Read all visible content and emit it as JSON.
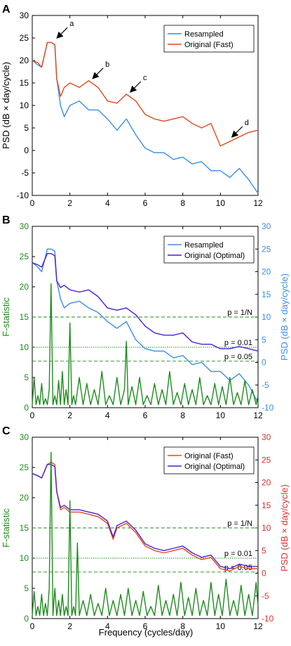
{
  "colors": {
    "resampled": "#3a8ee6",
    "original_fast": "#e04a1a",
    "original_optimal": "#4b1fd6",
    "fstat": "#1e8c1e",
    "right_axis_b": "#3a8ee6",
    "right_axis_c": "#e03030",
    "threshold": "#1e8c1e"
  },
  "xlabel": "Frequency (cycles/day)",
  "chart_data": [
    {
      "panel": "A",
      "type": "line",
      "ylabel": "PSD (dB × day/cycle)",
      "xlim": [
        0,
        12
      ],
      "ylim": [
        -10,
        30
      ],
      "xticks": [
        "0",
        "2",
        "4",
        "6",
        "8",
        "10",
        "12"
      ],
      "yticks": [
        "-10",
        "-5",
        "0",
        "5",
        "10",
        "15",
        "20",
        "25",
        "30"
      ],
      "legend_location": "top-right",
      "legend": [
        "Resampled",
        "Original (Fast)"
      ],
      "series": [
        {
          "name": "Resampled",
          "color_key": "resampled",
          "x": [
            0,
            0.3,
            0.5,
            0.8,
            1.0,
            1.2,
            1.3,
            1.5,
            1.7,
            2.0,
            2.5,
            3.0,
            3.5,
            4.0,
            4.5,
            5.0,
            5.5,
            6.0,
            6.5,
            7.0,
            7.5,
            8.0,
            8.5,
            9.0,
            9.5,
            10.0,
            10.5,
            11.0,
            11.5,
            12.0
          ],
          "y": [
            20,
            19,
            18.5,
            24,
            24,
            23.5,
            16,
            10,
            7.5,
            10,
            11,
            9,
            9,
            7,
            4.5,
            7,
            3.5,
            0.5,
            -0.5,
            -0.5,
            -2,
            -1.5,
            -3,
            -2.5,
            -4.5,
            -4.5,
            -6,
            -4,
            -6.5,
            -9.5
          ]
        },
        {
          "name": "Original (Fast)",
          "color_key": "original_fast",
          "x": [
            0,
            0.3,
            0.5,
            0.8,
            1.0,
            1.2,
            1.3,
            1.5,
            1.7,
            2.0,
            2.5,
            3.0,
            3.5,
            4.0,
            4.5,
            5.0,
            5.5,
            6.0,
            6.5,
            7.0,
            7.5,
            8.0,
            8.5,
            9.0,
            9.5,
            10.0,
            10.5,
            11.0,
            11.5,
            12.0
          ],
          "y": [
            20,
            19.5,
            18.5,
            24,
            24,
            23.5,
            16,
            12,
            14,
            15,
            14,
            15.5,
            14,
            11,
            10.5,
            12.5,
            11,
            8,
            7,
            6.5,
            7,
            7.5,
            6,
            5,
            6,
            1,
            2,
            3,
            4,
            4.5
          ]
        }
      ],
      "annotations": [
        {
          "label": "a",
          "x": 1.2,
          "y": 24.5
        },
        {
          "label": "b",
          "x": 3.1,
          "y": 15.5
        },
        {
          "label": "c",
          "x": 5.1,
          "y": 12.5
        },
        {
          "label": "d",
          "x": 10.5,
          "y": 2.5
        }
      ]
    },
    {
      "panel": "B",
      "type": "line",
      "ylabel_left": "F-statistic",
      "ylabel_right": "PSD (dB × day/cycle)",
      "xlim": [
        0,
        12
      ],
      "ylim_left": [
        0,
        30
      ],
      "ylim_right": [
        -10,
        30
      ],
      "xticks": [
        "0",
        "2",
        "4",
        "6",
        "8",
        "10",
        "12"
      ],
      "yticks_left": [
        "0",
        "5",
        "10",
        "15",
        "20",
        "25",
        "30"
      ],
      "yticks_right": [
        "-10",
        "-5",
        "0",
        "5",
        "10",
        "15",
        "20",
        "25",
        "30"
      ],
      "legend_location": "top-right",
      "legend": [
        "Resampled",
        "Original (Optimal)"
      ],
      "thresholds": [
        {
          "label": "p = 1/N",
          "value": 15,
          "style": "dashed"
        },
        {
          "label": "p = 0.01",
          "value": 10,
          "style": "dotted"
        },
        {
          "label": "p = 0.05",
          "value": 7.7,
          "style": "dashed"
        }
      ],
      "series": [
        {
          "name": "Resampled",
          "color_key": "resampled",
          "axis": "right",
          "x": [
            0,
            0.3,
            0.5,
            0.8,
            1.0,
            1.2,
            1.3,
            1.5,
            1.7,
            2.0,
            2.5,
            3.0,
            3.5,
            4.0,
            4.5,
            5.0,
            5.5,
            6.0,
            6.5,
            7.0,
            7.5,
            8.0,
            8.5,
            9.0,
            9.5,
            10.0,
            10.5,
            11.0,
            11.5,
            12.0
          ],
          "y": [
            22,
            21,
            20,
            25,
            25,
            24.5,
            18,
            14,
            12,
            13,
            13.5,
            12,
            11,
            9,
            7.5,
            9,
            5,
            3,
            2.5,
            2.5,
            1,
            1.5,
            -0.5,
            0,
            -2,
            -2,
            -4,
            -2.5,
            -5,
            -9
          ]
        },
        {
          "name": "Original (Optimal)",
          "color_key": "original_optimal",
          "axis": "right",
          "x": [
            0,
            0.3,
            0.5,
            0.8,
            1.0,
            1.2,
            1.3,
            1.5,
            1.7,
            2.0,
            2.5,
            3.0,
            3.5,
            4.0,
            4.5,
            5.0,
            5.5,
            6.0,
            6.5,
            7.0,
            7.5,
            8.0,
            8.5,
            9.0,
            9.5,
            10.0,
            10.5,
            11.0,
            11.5,
            12.0
          ],
          "y": [
            22,
            21.5,
            21,
            24,
            24,
            23.5,
            18,
            16.5,
            17,
            16,
            15.5,
            16,
            14.5,
            12,
            11.5,
            12,
            10.5,
            8,
            6.5,
            6,
            6,
            6.5,
            4.5,
            4,
            4,
            3,
            3,
            3.5,
            3,
            2.5
          ]
        },
        {
          "name": "F-statistic",
          "color_key": "fstat",
          "axis": "left",
          "x": [
            0,
            0.1,
            0.2,
            0.3,
            0.4,
            0.5,
            0.6,
            0.7,
            0.8,
            0.9,
            1.0,
            1.1,
            1.2,
            1.3,
            1.4,
            1.5,
            1.6,
            1.7,
            1.8,
            1.9,
            2.0,
            2.1,
            2.2,
            2.3,
            2.5,
            2.7,
            2.9,
            3.1,
            3.3,
            3.5,
            3.7,
            3.9,
            4.1,
            4.3,
            4.5,
            4.7,
            4.9,
            5.0,
            5.1,
            5.3,
            5.5,
            5.7,
            5.9,
            6.1,
            6.3,
            6.5,
            6.7,
            6.9,
            7.1,
            7.3,
            7.5,
            7.7,
            7.9,
            8.1,
            8.3,
            8.5,
            8.7,
            8.9,
            9.1,
            9.3,
            9.5,
            9.7,
            9.9,
            10.1,
            10.3,
            10.5,
            10.7,
            10.9,
            11.1,
            11.3,
            11.5,
            11.7,
            11.9,
            12.0
          ],
          "y": [
            0.5,
            5,
            0.5,
            2,
            0.5,
            4,
            0.5,
            1.5,
            0.5,
            3,
            20.5,
            0.5,
            2,
            0.5,
            4.5,
            0.5,
            6,
            0.5,
            3,
            0.5,
            14,
            0.5,
            2,
            0.5,
            5,
            0.5,
            4,
            0.5,
            3,
            0.5,
            6,
            0.5,
            2,
            0.5,
            5,
            0.5,
            3,
            11,
            0.5,
            3.5,
            0.5,
            5,
            0.5,
            2,
            0.5,
            4,
            0.5,
            3,
            0.5,
            6,
            0.5,
            2.5,
            0.5,
            4,
            0.5,
            3,
            0.5,
            5,
            0.5,
            2,
            0.5,
            4,
            0.5,
            3.5,
            0.5,
            5,
            0.5,
            2.5,
            0.5,
            4.5,
            0.5,
            3,
            0.5,
            2
          ]
        }
      ]
    },
    {
      "panel": "C",
      "type": "line",
      "ylabel_left": "F-statistic",
      "ylabel_right": "PSD (dB × day/cycle)",
      "xlim": [
        0,
        12
      ],
      "ylim_left": [
        0,
        30
      ],
      "ylim_right": [
        -10,
        30
      ],
      "xticks": [
        "0",
        "2",
        "4",
        "6",
        "8",
        "10",
        "12"
      ],
      "yticks_left": [
        "0",
        "5",
        "10",
        "15",
        "20",
        "25",
        "30"
      ],
      "yticks_right": [
        "-10",
        "-5",
        "0",
        "5",
        "10",
        "15",
        "20",
        "25",
        "30"
      ],
      "legend_location": "top-right",
      "legend": [
        "Original (Fast)",
        "Original (Optimal)"
      ],
      "thresholds": [
        {
          "label": "p = 1/N",
          "value": 15,
          "style": "dashed"
        },
        {
          "label": "p = 0.01",
          "value": 10,
          "style": "dotted"
        },
        {
          "label": "p = 0.05",
          "value": 7.7,
          "style": "dashed"
        }
      ],
      "series": [
        {
          "name": "Original (Fast)",
          "color_key": "original_fast",
          "axis": "right",
          "x": [
            0,
            0.3,
            0.5,
            0.8,
            1.0,
            1.2,
            1.3,
            1.5,
            1.7,
            2.0,
            2.5,
            3.0,
            3.5,
            4.0,
            4.3,
            4.5,
            5.0,
            5.5,
            6.0,
            6.5,
            7.0,
            7.5,
            8.0,
            8.5,
            9.0,
            9.5,
            10.0,
            10.5,
            11.0,
            11.5,
            12.0
          ],
          "y": [
            22,
            21.5,
            21,
            24,
            24.5,
            24,
            18,
            14,
            14.5,
            13.5,
            13.5,
            13,
            12.5,
            11,
            7.5,
            10,
            11,
            9,
            6,
            5,
            4.5,
            5,
            5.5,
            4,
            3,
            3.5,
            1,
            0.5,
            1.5,
            1,
            1
          ]
        },
        {
          "name": "Original (Optimal)",
          "color_key": "original_optimal",
          "axis": "right",
          "x": [
            0,
            0.3,
            0.5,
            0.8,
            1.0,
            1.2,
            1.3,
            1.5,
            1.7,
            2.0,
            2.5,
            3.0,
            3.5,
            4.0,
            4.3,
            4.5,
            5.0,
            5.5,
            6.0,
            6.5,
            7.0,
            7.5,
            8.0,
            8.5,
            9.0,
            9.5,
            10.0,
            10.5,
            11.0,
            11.5,
            12.0
          ],
          "y": [
            22,
            21.5,
            21,
            24,
            24,
            23.5,
            18,
            14.5,
            15,
            14,
            14,
            13.5,
            13,
            11.5,
            8,
            10.5,
            11.5,
            9.5,
            6.5,
            5.5,
            5,
            5.5,
            6,
            4.5,
            3.5,
            4,
            1.5,
            1,
            2,
            1.5,
            1.5
          ]
        },
        {
          "name": "F-statistic",
          "color_key": "fstat",
          "axis": "left",
          "x": [
            0,
            0.1,
            0.2,
            0.3,
            0.4,
            0.5,
            0.6,
            0.7,
            0.8,
            0.9,
            1.0,
            1.1,
            1.2,
            1.3,
            1.4,
            1.5,
            1.6,
            1.7,
            1.8,
            1.9,
            2.0,
            2.1,
            2.2,
            2.3,
            2.4,
            2.5,
            2.7,
            2.9,
            3.1,
            3.3,
            3.5,
            3.7,
            3.9,
            4.1,
            4.3,
            4.5,
            4.7,
            4.9,
            5.1,
            5.3,
            5.5,
            5.7,
            5.9,
            6.1,
            6.3,
            6.5,
            6.7,
            6.9,
            7.1,
            7.3,
            7.5,
            7.7,
            7.9,
            8.1,
            8.3,
            8.5,
            8.7,
            8.9,
            9.1,
            9.3,
            9.5,
            9.7,
            9.9,
            10.1,
            10.3,
            10.5,
            10.7,
            10.9,
            11.1,
            11.3,
            11.5,
            11.7,
            11.9,
            12.0
          ],
          "y": [
            0.5,
            4.5,
            0.5,
            2,
            0.5,
            4,
            0.5,
            2.5,
            0.5,
            5,
            27.5,
            0.5,
            5,
            0.5,
            3,
            0.5,
            4,
            0.5,
            2,
            0.5,
            19.5,
            0.5,
            2,
            0.5,
            12.5,
            0.5,
            3,
            0.5,
            4,
            0.5,
            2.5,
            0.5,
            5,
            0.5,
            3,
            0.5,
            4,
            0.5,
            5,
            0.5,
            3,
            0.5,
            4.5,
            0.5,
            2,
            0.5,
            5.5,
            0.5,
            3,
            0.5,
            4,
            0.5,
            6,
            0.5,
            3.5,
            0.5,
            5,
            0.5,
            3,
            0.5,
            6,
            0.5,
            4,
            0.5,
            6.5,
            0.5,
            3,
            0.5,
            5.5,
            0.5,
            4,
            0.5,
            6,
            2
          ]
        }
      ]
    }
  ]
}
